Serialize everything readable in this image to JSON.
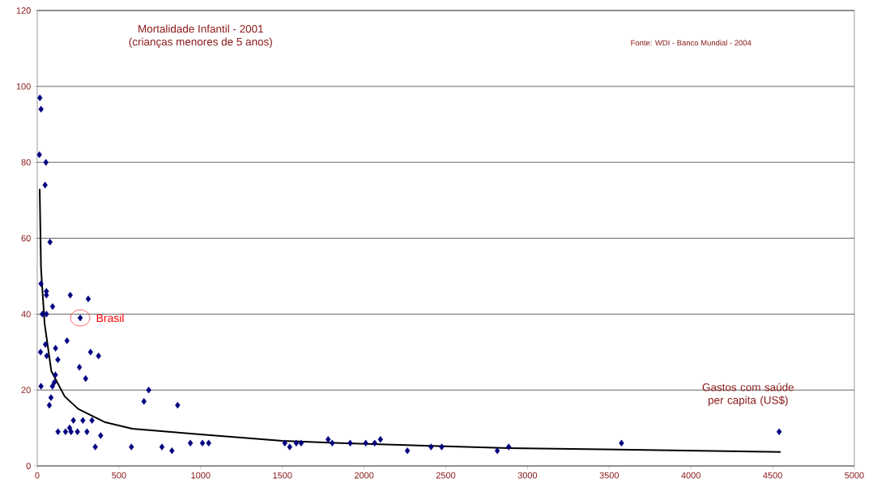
{
  "chart_data": {
    "type": "scatter",
    "title": "Mortalidade Infantil - 2001",
    "subtitle": "(crianças menores de  5 anos)",
    "xlabel": "Gastos com saúde per capita (US$)",
    "annotations": [
      {
        "text": "Brasil",
        "x": 263,
        "y": 39
      },
      "Fonte: WDI - Banco Mundial - 2004"
    ],
    "xlim": [
      0,
      5000
    ],
    "xticks": [
      0,
      500,
      1000,
      1500,
      2000,
      2500,
      3000,
      3500,
      4000,
      4500,
      5000
    ],
    "ylim": [
      0,
      120
    ],
    "yticks": [
      0,
      20,
      40,
      60,
      80,
      100,
      120
    ],
    "grid": "y",
    "legend": false,
    "series": [
      {
        "color": "#000080",
        "marker": "diamond",
        "x": [
          16,
          23,
          13,
          53,
          48,
          78,
          23,
          56,
          56,
          94,
          31,
          56,
          20,
          23,
          50,
          58,
          112,
          126,
          104,
          111,
          93,
          84,
          74,
          182,
          202,
          312,
          263,
          326,
          375,
          258,
          296,
          127,
          173,
          198,
          207,
          221,
          246,
          279,
          304,
          335,
          355,
          388,
          576,
          653,
          682,
          763,
          824,
          859,
          937,
          1011,
          1049,
          1515,
          1545,
          1585,
          1615,
          1780,
          1805,
          1915,
          2010,
          2065,
          2100,
          2265,
          2410,
          2475,
          2815,
          2885,
          3575,
          4540
        ],
        "values": [
          97,
          94,
          82,
          80,
          74,
          59,
          48,
          46,
          45,
          42,
          40,
          40,
          30,
          21,
          32,
          29,
          31,
          28,
          22,
          24,
          21,
          18,
          16,
          33,
          45,
          44,
          39,
          30,
          29,
          26,
          23,
          9,
          9,
          10,
          9,
          12,
          9,
          12,
          9,
          12,
          5,
          8,
          5,
          17,
          20,
          5,
          4,
          16,
          6,
          6,
          6,
          6,
          5,
          6,
          6,
          7,
          6,
          6,
          6,
          6,
          7,
          4,
          5,
          5,
          4,
          5,
          6,
          9
        ]
      },
      {
        "type": "line",
        "color": "#000000",
        "marker": "none",
        "line_style": "solid",
        "x": [
          15,
          23,
          45,
          86,
          168,
          251,
          416,
          581,
          1060,
          1500,
          1853,
          2885,
          4549
        ],
        "values": [
          73,
          52,
          37.5,
          25,
          18.3,
          15,
          11.5,
          9.8,
          8.1,
          6.6,
          6.0,
          4.7,
          3.7
        ]
      }
    ]
  }
}
